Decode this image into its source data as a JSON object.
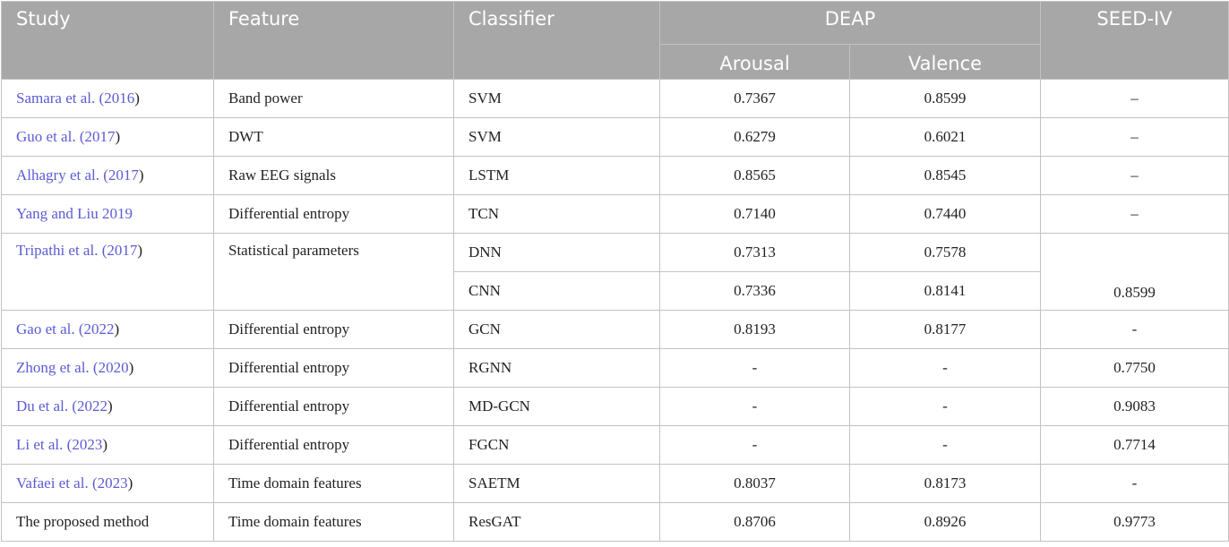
{
  "header": {
    "study": "Study",
    "feature": "Feature",
    "classifier": "Classifier",
    "deap": "DEAP",
    "seed": "SEED-IV",
    "arousal": "Arousal",
    "valence": "Valence"
  },
  "rows": [
    {
      "author": "Samara et al. (",
      "year": "2016",
      "close": ")",
      "feature": "Band power",
      "classifier": "SVM",
      "arousal": "0.7367",
      "valence": "0.8599",
      "seed": "–"
    },
    {
      "author": "Guo et al. (",
      "year": "2017",
      "close": ")",
      "feature": "DWT",
      "classifier": "SVM",
      "arousal": "0.6279",
      "valence": "0.6021",
      "seed": "–"
    },
    {
      "author": "Alhagry et al. (",
      "year": "2017",
      "close": ")",
      "feature": "Raw EEG signals",
      "classifier": "LSTM",
      "arousal": "0.8565",
      "valence": "0.8545",
      "seed": "–"
    },
    {
      "author": "Yang and Liu ",
      "year": "2019",
      "close": "",
      "feature": "Differential entropy",
      "classifier": "TCN",
      "arousal": "0.7140",
      "valence": "0.7440",
      "seed": "–"
    },
    {
      "author": "Tripathi et al. (",
      "year": "2017",
      "close": ")",
      "feature": "Statistical parameters",
      "classifier": "DNN",
      "arousal": "0.7313",
      "valence": "0.7578",
      "seed": ""
    },
    {
      "classifier": "CNN",
      "arousal": "0.7336",
      "valence": "0.8141",
      "seed": "0.8599"
    },
    {
      "author": "Gao et al. (",
      "year": "2022",
      "close": ")",
      "feature": "Differential entropy",
      "classifier": "GCN",
      "arousal": "0.8193",
      "valence": "0.8177",
      "seed": "-"
    },
    {
      "author": "Zhong et al. (",
      "year": "2020",
      "close": ")",
      "feature": "Differential entropy",
      "classifier": "RGNN",
      "arousal": "-",
      "valence": "-",
      "seed": "0.7750"
    },
    {
      "author": "Du et al. (",
      "year": "2022",
      "close": ")",
      "feature": "Differential entropy",
      "classifier": "MD-GCN",
      "arousal": "-",
      "valence": "-",
      "seed": "0.9083"
    },
    {
      "author": "Li et al. (",
      "year": "2023",
      "close": ")",
      "feature": "Differential entropy",
      "classifier": "FGCN",
      "arousal": "-",
      "valence": "-",
      "seed": "0.7714"
    },
    {
      "author": "Vafaei et al. (",
      "year": "2023",
      "close": ")",
      "feature": "Time domain features",
      "classifier": "SAETM",
      "arousal": "0.8037",
      "valence": "0.8173",
      "seed": "-"
    },
    {
      "author": "The proposed method",
      "year": "",
      "close": "",
      "feature": "Time domain features",
      "classifier": "ResGAT",
      "arousal": "0.8706",
      "valence": "0.8926",
      "seed": "0.9773"
    }
  ],
  "colors": {
    "header_bg": "#a7a7a7",
    "link": "#5b5bd6",
    "border": "#c2c2c2"
  }
}
